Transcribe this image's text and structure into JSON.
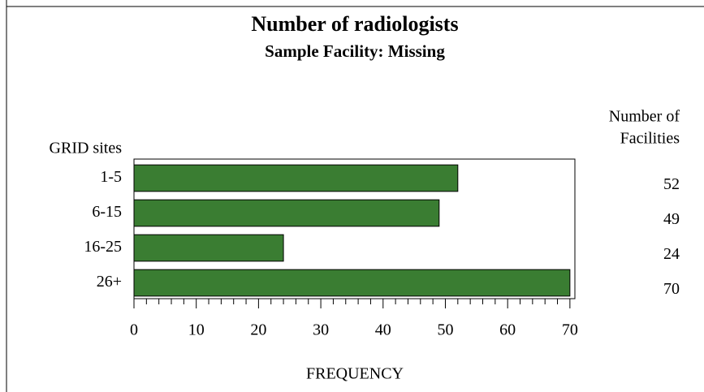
{
  "chart_data": {
    "type": "bar",
    "orientation": "horizontal",
    "title": "Number of radiologists",
    "subtitle": "Sample Facility: Missing",
    "y_label": "GRID sites",
    "x_label": "FREQUENCY",
    "value_header": [
      "Number of",
      "Facilities"
    ],
    "categories": [
      "1-5",
      "6-15",
      "16-25",
      "26+"
    ],
    "values": [
      52,
      49,
      24,
      70
    ],
    "color": "#3a7d32",
    "xlim": [
      0,
      70.8
    ],
    "xticks": [
      0,
      10,
      20,
      30,
      40,
      50,
      60,
      70
    ],
    "xminorticks": [
      2,
      4,
      6,
      8,
      12,
      14,
      16,
      18,
      22,
      24,
      26,
      28,
      32,
      34,
      36,
      38,
      42,
      44,
      46,
      48,
      52,
      54,
      56,
      58,
      62,
      64,
      66,
      68
    ]
  }
}
